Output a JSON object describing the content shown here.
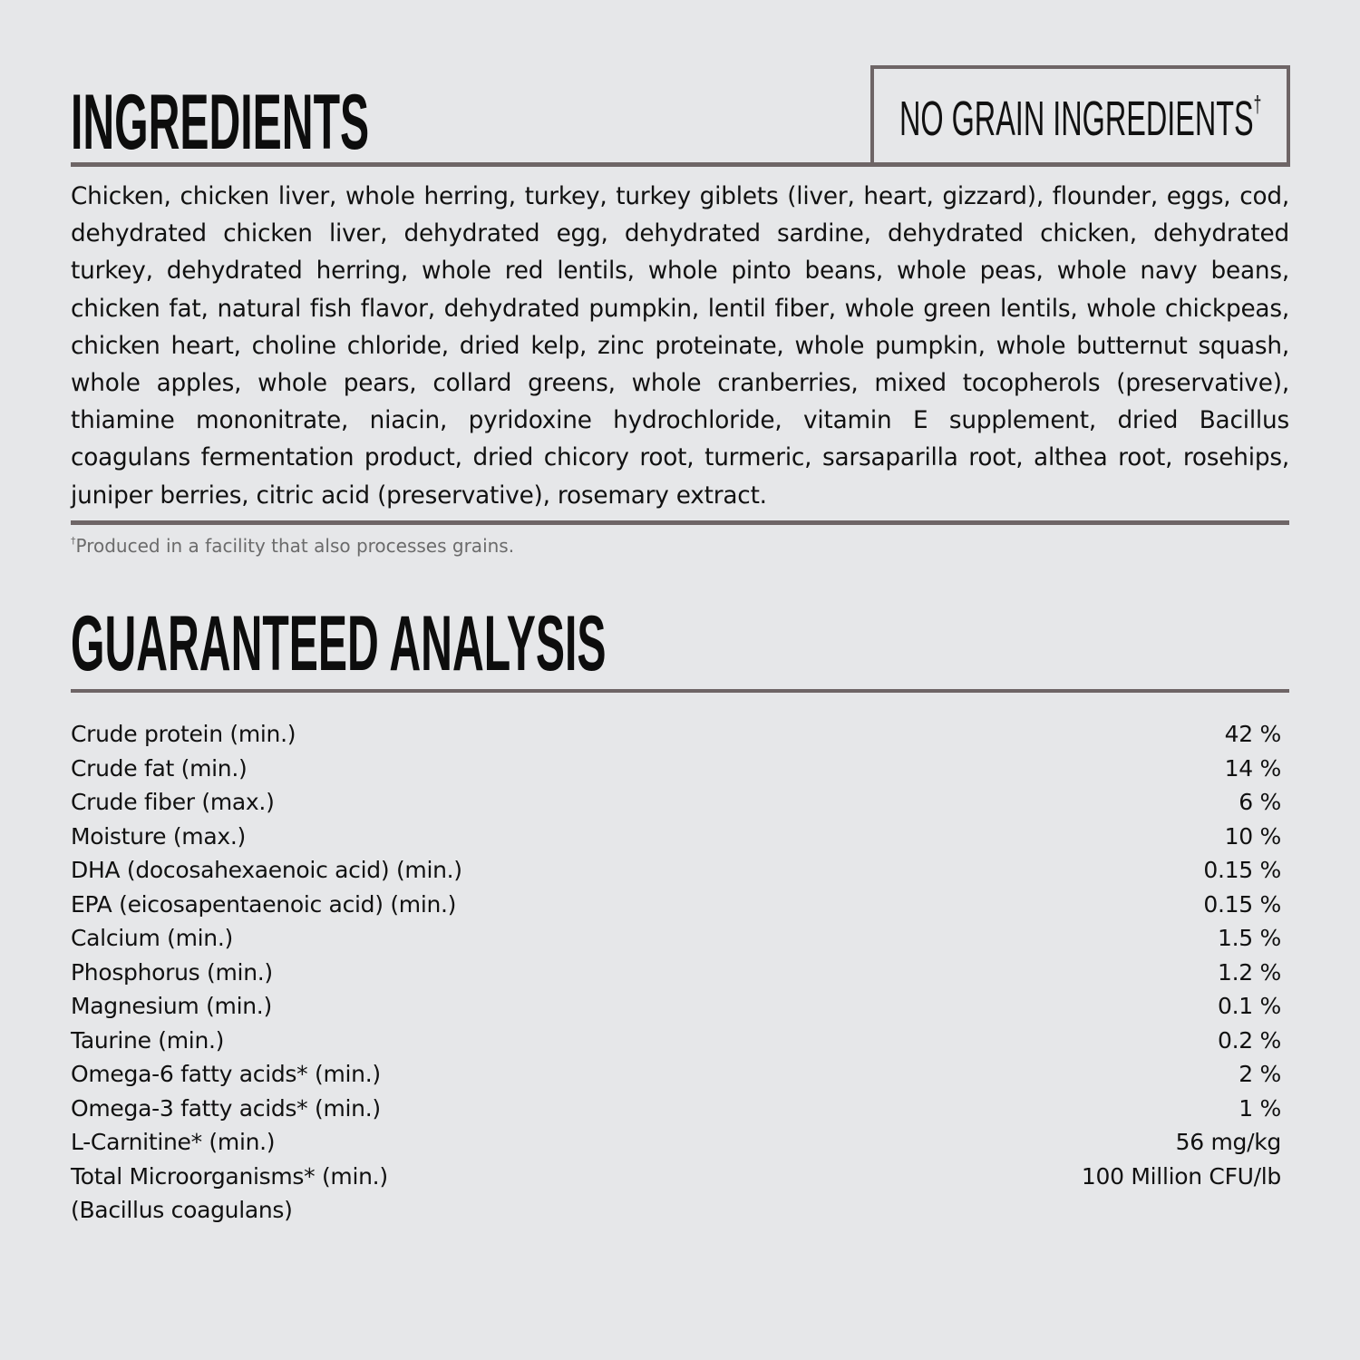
{
  "ingredients": {
    "title": "INGREDIENTS",
    "badge": "NO GRAIN INGREDIENTS",
    "badge_mark": "†",
    "text": "Chicken, chicken liver, whole herring, turkey, turkey giblets (liver, heart, gizzard), flounder, eggs, cod, dehydrated chicken liver, dehydrated egg, dehydrated sardine, dehydrated chicken, dehydrated turkey, dehydrated herring, whole red lentils, whole pinto beans, whole peas, whole navy beans, chicken fat, natural fish flavor, dehydrated pumpkin, lentil fiber, whole green lentils, whole chickpeas, chicken heart, choline chloride, dried kelp, zinc proteinate, whole pumpkin, whole butternut squash, whole apples, whole pears, collard greens, whole cranberries, mixed tocopherols (preservative), thiamine mononitrate, niacin, pyridoxine hydrochloride, vitamin E supplement, dried Bacillus coagulans fermentation product, dried chicory root, turmeric, sarsaparilla root, althea root, rosehips, juniper berries, citric acid (preservative), rosemary extract.",
    "footnote_mark": "†",
    "footnote": "Produced in a facility that also processes grains."
  },
  "analysis": {
    "title": "GUARANTEED ANALYSIS",
    "rows": [
      {
        "label": "Crude protein (min.)",
        "value": "42 %"
      },
      {
        "label": "Crude fat (min.)",
        "value": "14 %"
      },
      {
        "label": "Crude fiber (max.)",
        "value": "6 %"
      },
      {
        "label": "Moisture (max.)",
        "value": "10 %"
      },
      {
        "label": "DHA (docosahexaenoic acid) (min.)",
        "value": "0.15 %"
      },
      {
        "label": "EPA (eicosapentaenoic acid) (min.)",
        "value": "0.15 %"
      },
      {
        "label": "Calcium (min.)",
        "value": "1.5 %"
      },
      {
        "label": "Phosphorus (min.)",
        "value": "1.2 %"
      },
      {
        "label": "Magnesium (min.)",
        "value": "0.1 %"
      },
      {
        "label": "Taurine (min.)",
        "value": "0.2 %"
      },
      {
        "label": "Omega-6 fatty acids* (min.)",
        "value": "2 %"
      },
      {
        "label": "Omega-3 fatty acids* (min.)",
        "value": "1 %"
      },
      {
        "label": "L-Carnitine* (min.)",
        "value": "56 mg/kg"
      },
      {
        "label": "Total Microorganisms* (min.)",
        "value": "100 Million CFU/lb"
      }
    ],
    "sub_label": "(Bacillus coagulans)"
  },
  "colors": {
    "background": "#e6e7e9",
    "rule": "#6e6566",
    "footnote": "#6b6b6b"
  }
}
